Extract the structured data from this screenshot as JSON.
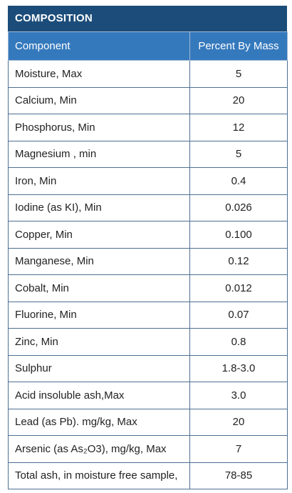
{
  "title": "COMPOSITION",
  "table": {
    "header": [
      "Component",
      "Percent By Mass"
    ],
    "rows": [
      [
        "Moisture, Max",
        "5"
      ],
      [
        "Calcium, Min",
        "20"
      ],
      [
        "Phosphorus, Min",
        "12"
      ],
      [
        "Magnesium , min",
        "5"
      ],
      [
        "Iron, Min",
        "0.4"
      ],
      [
        "Iodine (as KI), Min",
        "0.026"
      ],
      [
        "Copper, Min",
        "0.100"
      ],
      [
        "Manganese, Min",
        "0.12"
      ],
      [
        "Cobalt, Min",
        "0.012"
      ],
      [
        "Fluorine, Min",
        "0.07"
      ],
      [
        "Zinc, Min",
        "0.8"
      ],
      [
        "Sulphur",
        "1.8-3.0"
      ],
      [
        "Acid insoluble ash,Max",
        "3.0"
      ],
      [
        "Lead (as Pb). mg/kg, Max",
        "20"
      ],
      [
        "Arsenic (as As₂O3), mg/kg, Max",
        "7"
      ],
      [
        "Total ash, in moisture free sample,",
        "78-85"
      ]
    ]
  }
}
